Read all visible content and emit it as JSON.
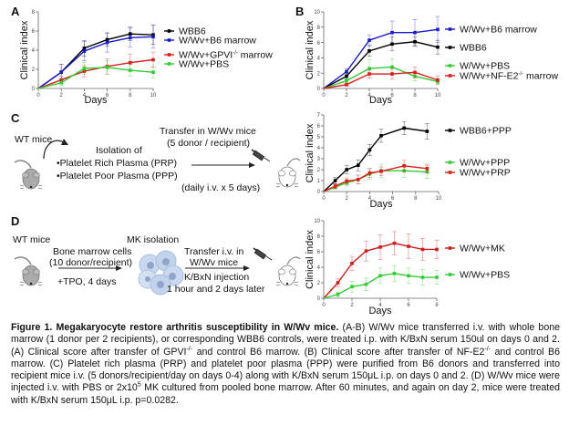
{
  "panels": {
    "A": {
      "letter": "A"
    },
    "B": {
      "letter": "B"
    },
    "C": {
      "letter": "C"
    },
    "D": {
      "letter": "D"
    }
  },
  "schematic_C": {
    "source": "WT mice",
    "isolation_title": "Isolation of",
    "isolation_items": [
      "•Platelet Rich Plasma (PRP)",
      "•Platelet Poor Plasma (PPP)"
    ],
    "transfer_line1": "Transfer in W/Wv mice",
    "transfer_line2": "(5 donor / recipient)",
    "schedule": "(daily i.v. x 5 days)"
  },
  "schematic_D": {
    "source": "WT mice",
    "bm_line1": "Bone marrow cells",
    "bm_line2": "(10 donor/recipient)",
    "tpo": "+TPO, 4 days",
    "mk": "MK isolation",
    "transfer_line1": "Transfer i.v. in",
    "transfer_line2": "W/Wv mice",
    "injection_line1": "K/BxN injection",
    "injection_line2": "1 hour and 2 days later"
  },
  "caption": {
    "title": "Figure 1. Megakaryocyte restore arthritis susceptibility in W/Wv mice.",
    "part1": " (A-B) W/Wv mice transferred i.v. with whole bone marrow (1 donor per 2 recipients), or corresponding WBB6 controls, were treated i.p. with K/BxN serum 150ul on days 0 and 2. (A) Clinical score after transfer of GPVI",
    "sup1": "-/-",
    "part2": " and control B6 marrow. (B) Clinical score after transfer of NF-E2",
    "sup2": "-/-",
    "part3": " and control B6 marrow. (C) Platelet rich plasma (PRP) and platelet poor plasma (PPP) were purified from B6 donors and transferred into recipient mice i.v. (5 donors/recipient/day on days 0-4) along with K/BxN serum 150μL i.p. on days 0 and 2. (D) W/Wv mice were injected i.v. with PBS or 2x10",
    "sup3": "5",
    "part4": " MK cultured from pooled bone marrow. After 60 minutes, and again on day 2, mice were treated with K/BxN serum 150μL i.p. p=0.0282."
  },
  "chart_data": [
    {
      "id": "A",
      "type": "line",
      "title": "",
      "xlabel": "Days",
      "ylabel": "Clinical index",
      "xlim": [
        0,
        10
      ],
      "ylim": [
        0,
        8
      ],
      "xticks": [
        0,
        2,
        4,
        6,
        8,
        10
      ],
      "yticks": [
        0,
        2,
        4,
        6,
        8
      ],
      "legend_position": "right",
      "series": [
        {
          "name": "WBB6",
          "color": "#000000",
          "x": [
            0,
            2,
            4,
            6,
            8,
            10
          ],
          "y": [
            0,
            1.7,
            4.2,
            5.1,
            5.7,
            5.6
          ],
          "err": [
            0,
            0.8,
            0.8,
            0.7,
            0.7,
            1.0
          ]
        },
        {
          "name": "W/Wv+B6 marrow",
          "color": "#1a1acc",
          "x": [
            0,
            2,
            4,
            6,
            8,
            10
          ],
          "y": [
            0,
            1.7,
            3.9,
            4.8,
            5.3,
            5.4
          ],
          "err": [
            0,
            0.8,
            1.0,
            1.0,
            1.0,
            1.2
          ]
        },
        {
          "name": "W/Wv+GPVI-/- marrow",
          "sup": "-/-",
          "base": "W/Wv+GPVI",
          "tail": " marrow",
          "color": "#dd1c1c",
          "x": [
            0,
            2,
            4,
            6,
            8,
            10
          ],
          "y": [
            0,
            0.9,
            1.8,
            2.3,
            2.7,
            3.0
          ],
          "err": [
            0,
            0.4,
            0.6,
            0.8,
            0.9,
            0.8
          ]
        },
        {
          "name": "W/Wv+PBS",
          "color": "#33cc33",
          "x": [
            0,
            2,
            4,
            6,
            8,
            10
          ],
          "y": [
            0,
            0.6,
            2.1,
            2.2,
            1.9,
            1.7
          ],
          "err": [
            0,
            0.3,
            0.6,
            0.7,
            0.6,
            0.6
          ]
        }
      ]
    },
    {
      "id": "B",
      "type": "line",
      "title": "",
      "xlabel": "Days",
      "ylabel": "Clinical index",
      "xlim": [
        0,
        10
      ],
      "ylim": [
        0,
        10
      ],
      "xticks": [
        0,
        2,
        4,
        6,
        8,
        10
      ],
      "yticks": [
        0,
        2,
        4,
        6,
        8,
        10
      ],
      "legend_position": "right",
      "series": [
        {
          "name": "W/Wv+B6 marrow",
          "color": "#1a1acc",
          "x": [
            0,
            2,
            4,
            6,
            8,
            10
          ],
          "y": [
            0,
            2.2,
            6.3,
            7.3,
            7.3,
            7.7
          ],
          "err": [
            0,
            0.4,
            0.7,
            1.5,
            1.7,
            1.7
          ]
        },
        {
          "name": "WBB6",
          "color": "#000000",
          "x": [
            0,
            2,
            4,
            6,
            8,
            10
          ],
          "y": [
            0,
            1.6,
            4.9,
            5.8,
            6.1,
            5.4
          ],
          "err": [
            0,
            0.4,
            0.7,
            0.9,
            0.6,
            0.9
          ]
        },
        {
          "name": "W/Wv+PBS",
          "color": "#33cc33",
          "x": [
            0,
            2,
            4,
            6,
            8,
            10
          ],
          "y": [
            0,
            1.0,
            2.6,
            2.8,
            1.6,
            0.9
          ],
          "err": [
            0,
            0.3,
            1.2,
            1.1,
            0.6,
            0.4
          ]
        },
        {
          "name": "W/Wv+NF-E2-/- marrow",
          "sup": "-/-",
          "base": "W/Wv+NF-E2",
          "tail": " marrow",
          "color": "#dd1c1c",
          "x": [
            0,
            2,
            4,
            6,
            8,
            10
          ],
          "y": [
            0,
            0.5,
            1.9,
            1.9,
            2.1,
            1.1
          ],
          "err": [
            0,
            0.2,
            0.5,
            0.7,
            0.7,
            0.5
          ]
        }
      ]
    },
    {
      "id": "C",
      "type": "line",
      "title": "",
      "xlabel": "Days",
      "ylabel": "Clinical index",
      "xlim": [
        0,
        10
      ],
      "ylim": [
        0,
        7
      ],
      "xticks": [
        0,
        2,
        4,
        6,
        8,
        10
      ],
      "yticks": [
        0,
        1,
        2,
        3,
        4,
        5,
        6,
        7
      ],
      "legend_position": "right",
      "series": [
        {
          "name": "WBB6+PPP",
          "color": "#000000",
          "x": [
            0,
            1,
            2,
            3,
            4,
            5,
            7,
            9
          ],
          "y": [
            0,
            1.0,
            2.0,
            2.4,
            3.8,
            5.1,
            5.8,
            5.5
          ],
          "err": [
            0,
            0.3,
            0.4,
            0.5,
            0.5,
            0.6,
            0.6,
            0.7
          ]
        },
        {
          "name": "W/Wv+PPP",
          "color": "#33cc33",
          "x": [
            0,
            1,
            2,
            3,
            4,
            5,
            7,
            9
          ],
          "y": [
            0,
            0.4,
            0.8,
            1.1,
            1.6,
            1.9,
            1.9,
            1.8
          ],
          "err": [
            0,
            0.2,
            0.3,
            0.4,
            0.5,
            0.6,
            0.6,
            0.6
          ]
        },
        {
          "name": "W/Wv+PRP",
          "color": "#dd1c1c",
          "x": [
            0,
            1,
            2,
            3,
            4,
            5,
            7,
            9
          ],
          "y": [
            0,
            0.5,
            0.95,
            1.1,
            1.7,
            1.85,
            2.35,
            2.1
          ],
          "err": [
            0,
            0.2,
            0.3,
            0.4,
            0.4,
            0.4,
            0.5,
            0.4
          ]
        }
      ]
    },
    {
      "id": "D",
      "type": "line",
      "title": "",
      "xlabel": "Days",
      "ylabel": "Clinical index",
      "xlim": [
        0,
        8
      ],
      "ylim": [
        0,
        10
      ],
      "xticks": [
        0,
        2,
        4,
        6,
        8
      ],
      "yticks": [
        0,
        2,
        4,
        6,
        8,
        10
      ],
      "legend_position": "right",
      "series": [
        {
          "name": "W/Wv+MK",
          "color": "#cc1c1c",
          "x": [
            0,
            1,
            2,
            3,
            4,
            5,
            6,
            7,
            8
          ],
          "y": [
            0,
            2.0,
            4.5,
            6.1,
            6.6,
            7.1,
            6.7,
            6.3,
            6.3
          ],
          "err": [
            0,
            0.5,
            0.9,
            1.3,
            1.6,
            1.5,
            1.6,
            1.4,
            1.2
          ]
        },
        {
          "name": "W/Wv+PBS",
          "color": "#33cc33",
          "x": [
            0,
            1,
            2,
            3,
            4,
            5,
            6,
            7,
            8
          ],
          "y": [
            0,
            0.5,
            1.5,
            1.8,
            2.9,
            3.2,
            2.9,
            2.7,
            2.7
          ],
          "err": [
            0,
            0.3,
            0.7,
            0.8,
            1.0,
            1.0,
            1.0,
            1.0,
            0.9
          ]
        }
      ]
    }
  ]
}
